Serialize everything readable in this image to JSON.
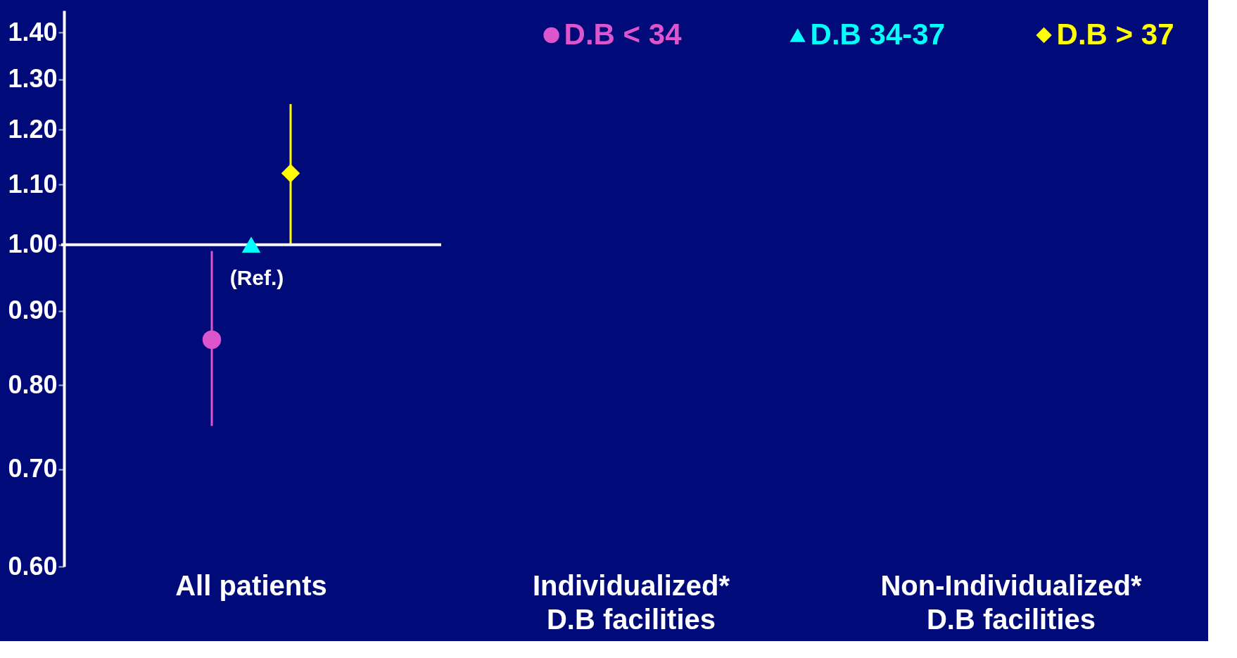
{
  "chart_data": {
    "type": "scatter",
    "categories": [
      "All patients",
      "Individualized*\nD.B facilities",
      "Non-Individualized*\nD.B facilities"
    ],
    "series": [
      {
        "name": "D.B < 34",
        "color": "#dd55cc",
        "marker": "circle",
        "values": [
          0.86,
          null,
          null
        ],
        "errors": [
          [
            0.75,
            0.99
          ],
          null,
          null
        ]
      },
      {
        "name": "D.B 34-37",
        "color": "#00ffff",
        "marker": "triangle",
        "values": [
          1.0,
          null,
          null
        ]
      },
      {
        "name": "D.B > 37",
        "color": "#ffff00",
        "marker": "diamond",
        "values": [
          1.12,
          null,
          null
        ],
        "errors": [
          [
            1.0,
            1.25
          ],
          null,
          null
        ]
      }
    ],
    "log": true,
    "ylim": [
      0.6,
      1.45
    ],
    "yticks": [
      {
        "value": 0.6,
        "label": "0.60"
      },
      {
        "value": 0.7,
        "label": "0.70"
      },
      {
        "value": 0.8,
        "label": "0.80"
      },
      {
        "value": 0.9,
        "label": "0.90"
      },
      {
        "value": 1.0,
        "label": "1.00"
      },
      {
        "value": 1.1,
        "label": "1.10"
      },
      {
        "value": 1.2,
        "label": "1.20"
      },
      {
        "value": 1.3,
        "label": "1.30"
      },
      {
        "value": 1.4,
        "label": "1.40"
      }
    ],
    "ref_lines": [
      {
        "axis": "y",
        "value": 1.0,
        "color": "#ffffff"
      }
    ],
    "annotations": [
      {
        "text": "(Ref.)",
        "x": "All patients",
        "y": 1.0
      }
    ],
    "grid": false,
    "legend": "top right"
  }
}
